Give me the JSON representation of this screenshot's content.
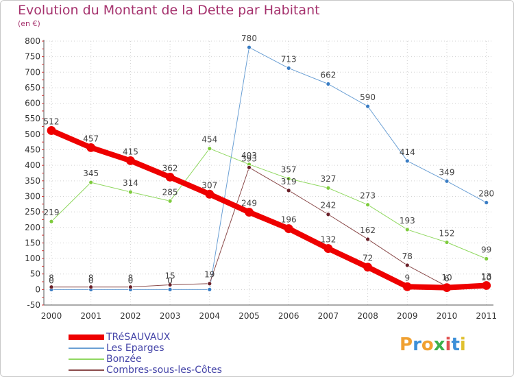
{
  "header": {
    "title": "Evolution du Montant de la Dette par Habitant",
    "subtitle": "(en €)"
  },
  "colors": {
    "title": "#a5316d",
    "legend_text": "#4545a8",
    "grid": "#d0d0d0"
  },
  "logo": {
    "text": "Proxiti",
    "letters": [
      "P",
      "r",
      "o",
      "x",
      "i",
      "t",
      "i"
    ],
    "letter_colors": [
      "#f0a030",
      "#3c8fd8",
      "#f0a030",
      "#3cb04a",
      "#e05050",
      "#3c8fd8",
      "#e0c030"
    ]
  },
  "chart_data": {
    "type": "line",
    "title": "Evolution du Montant de la Dette par Habitant",
    "subtitle": "(en €)",
    "xlabel": "",
    "ylabel": "",
    "x": [
      "2000",
      "2001",
      "2002",
      "2003",
      "2004",
      "2005",
      "2006",
      "2007",
      "2008",
      "2009",
      "2010",
      "2011"
    ],
    "ylim": [
      -50,
      800
    ],
    "yticks": [
      -50,
      0,
      50,
      100,
      150,
      200,
      250,
      300,
      350,
      400,
      450,
      500,
      550,
      600,
      650,
      700,
      750,
      800
    ],
    "grid": true,
    "legend_position": "bottom-left",
    "series": [
      {
        "name": "Les Eparges",
        "color": "#6a9fd4",
        "marker_color": "#3a7dc4",
        "line_width": 1,
        "values": [
          0,
          0,
          0,
          0,
          0,
          780,
          713,
          662,
          590,
          414,
          349,
          280
        ],
        "labels": [
          "0",
          "0",
          "0",
          "0",
          "",
          "780",
          "713",
          "662",
          "590",
          "414",
          "349",
          "280"
        ]
      },
      {
        "name": "Bonzée",
        "color": "#90d860",
        "marker_color": "#7ecb3d",
        "line_width": 1,
        "values": [
          219,
          345,
          314,
          285,
          454,
          403,
          357,
          327,
          273,
          193,
          152,
          99
        ],
        "labels": [
          "219",
          "345",
          "314",
          "285",
          "454",
          "403",
          "357",
          "327",
          "273",
          "193",
          "152",
          "99"
        ]
      },
      {
        "name": "Combres-sous-les-Côtes",
        "color": "#8a4a4a",
        "marker_color": "#6a1f28",
        "line_width": 1,
        "values": [
          8,
          8,
          8,
          15,
          19,
          393,
          319,
          242,
          162,
          78,
          10,
          10
        ],
        "labels": [
          "8",
          "8",
          "8",
          "15",
          "19",
          "393",
          "319",
          "242",
          "162",
          "78",
          "10",
          "10"
        ]
      },
      {
        "name": "TRéSAUVAUX",
        "color": "#ee0000",
        "marker_color": "#ee0000",
        "line_width": 8,
        "values": [
          512,
          457,
          415,
          362,
          307,
          249,
          196,
          132,
          72,
          9,
          6,
          13
        ],
        "labels": [
          "512",
          "457",
          "415",
          "362",
          "307",
          "249",
          "196",
          "132",
          "72",
          "9",
          "6",
          "13"
        ]
      }
    ],
    "legend": [
      "TRéSAUVAUX",
      "Les Eparges",
      "Bonzée",
      "Combres-sous-les-Côtes"
    ]
  }
}
